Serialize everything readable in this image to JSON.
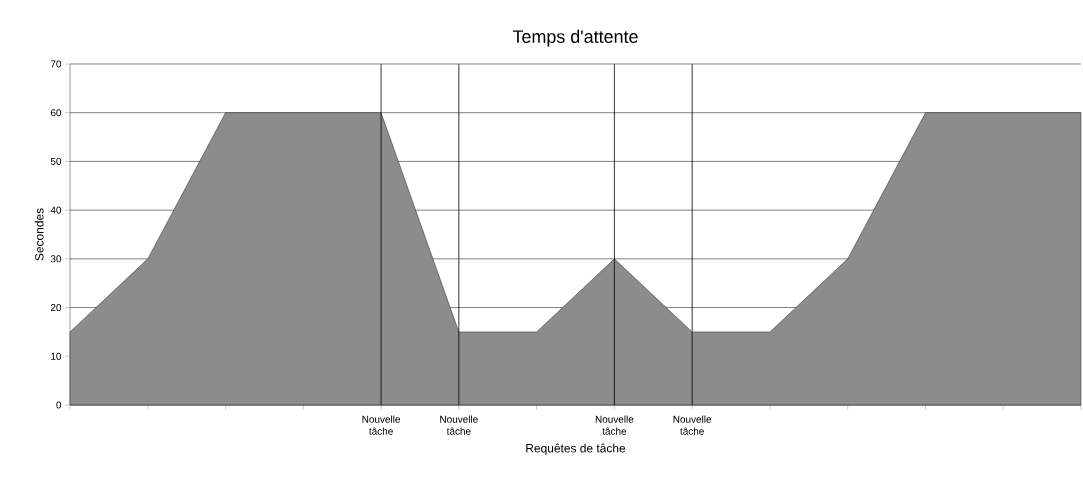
{
  "chart_data": {
    "type": "area",
    "title": "Temps d'attente",
    "xlabel": "Requêtes de tâche",
    "ylabel": "Secondes",
    "categories": [
      null,
      null,
      null,
      null,
      "Nouvelle tâche",
      "Nouvelle tâche",
      null,
      "Nouvelle tâche",
      "Nouvelle tâche",
      null,
      null,
      null,
      null,
      null
    ],
    "values": [
      15,
      30,
      60,
      60,
      60,
      15,
      15,
      30,
      15,
      15,
      30,
      60,
      60,
      60
    ],
    "color": "#8c8c8c",
    "ylim": [
      0,
      70
    ],
    "yticks": [
      0,
      10,
      20,
      30,
      40,
      50,
      60,
      70
    ],
    "grid": true
  }
}
